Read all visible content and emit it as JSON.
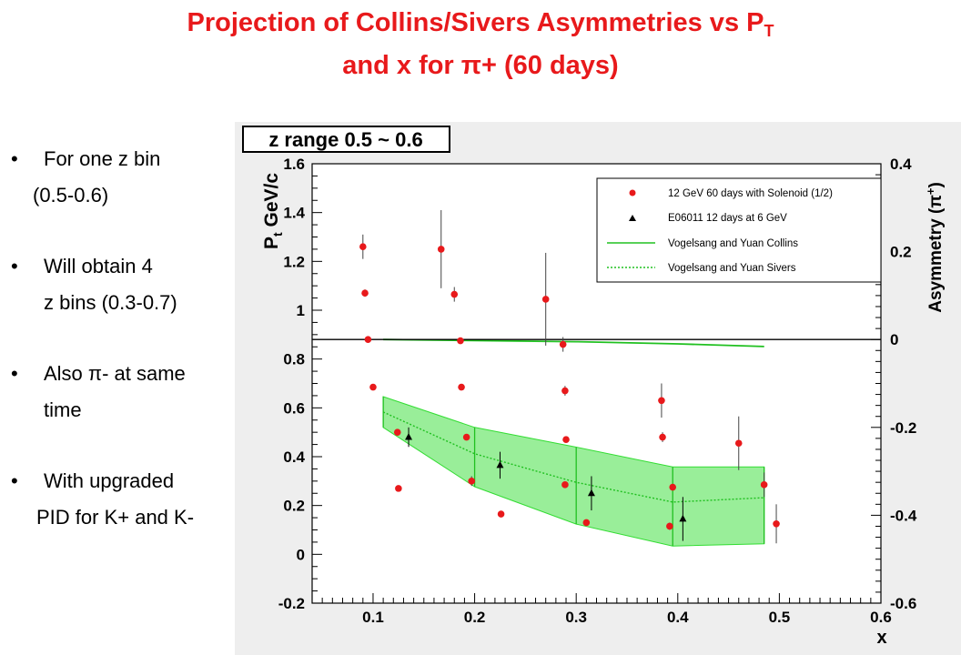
{
  "slide": {
    "title_line1_main": "Projection of Collins/Sivers Asymmetries vs P",
    "title_line1_sub": "T",
    "title_line2_pre": "and x for ",
    "title_line2_sym": "π",
    "title_line2_post": "+ (60 days)"
  },
  "bullets": [
    {
      "bullet": "•",
      "lines": [
        "For one z bin",
        "(0.5-0.6)"
      ]
    },
    {
      "bullet": "•",
      "lines": [
        "Will obtain 4",
        "z bins (0.3-0.7)"
      ]
    },
    {
      "bullet": "•",
      "lines": [
        "Also π- at same",
        "time"
      ]
    },
    {
      "bullet": "•",
      "lines": [
        "With upgraded",
        "PID for K+ and K-"
      ]
    }
  ],
  "chart_data": {
    "type": "scatter",
    "title": "z range 0.5 ~ 0.6",
    "xlabel": "x",
    "ylabel": "P_t GeV/c",
    "ylabel_parts": {
      "main": "P",
      "sub": "t",
      "rest": " GeV/c"
    },
    "y2label": "Asymmetry (π+)",
    "y2label_parts": {
      "main": "Asymmetry (π",
      "sup": "+",
      "rest": ")"
    },
    "xlim": [
      0.04,
      0.6
    ],
    "ylim": [
      -0.2,
      1.6
    ],
    "y2lim": [
      -0.6,
      0.4
    ],
    "x_ticks": [
      "0.1",
      "0.2",
      "0.3",
      "0.4",
      "0.5",
      "0.6"
    ],
    "y_ticks": [
      "-0.2",
      "0",
      "0.2",
      "0.4",
      "0.6",
      "0.8",
      "1",
      "1.2",
      "1.4",
      "1.6"
    ],
    "y2_ticks": [
      "-0.6",
      "-0.4",
      "-0.2",
      "0",
      "0.2",
      "0.4"
    ],
    "grid": false,
    "legend_position": "top-right",
    "colors": {
      "solenoid": "#e8191b",
      "e06011": "#000000",
      "theory": "#20c020",
      "band": "#33dd33",
      "frame": "#000000",
      "panel_bg": "#eeeeee",
      "title_red": "#e8191b"
    },
    "series": [
      {
        "name": "12 GeV 60 days with Solenoid (1/2)",
        "kind": "points",
        "points": [
          {
            "x": 0.09,
            "y": 1.26,
            "ey": 0.05
          },
          {
            "x": 0.092,
            "y": 1.07,
            "ey": 0.015
          },
          {
            "x": 0.095,
            "y": 0.88,
            "ey": 0
          },
          {
            "x": 0.1,
            "y": 0.685,
            "ey": 0
          },
          {
            "x": 0.124,
            "y": 0.5,
            "ey": 0.01
          },
          {
            "x": 0.125,
            "y": 0.27,
            "ey": 0
          },
          {
            "x": 0.167,
            "y": 1.25,
            "ey": 0.16
          },
          {
            "x": 0.18,
            "y": 1.065,
            "ey": 0.03
          },
          {
            "x": 0.186,
            "y": 0.875,
            "ey": 0.01
          },
          {
            "x": 0.187,
            "y": 0.685,
            "ey": 0
          },
          {
            "x": 0.192,
            "y": 0.48,
            "ey": 0
          },
          {
            "x": 0.197,
            "y": 0.3,
            "ey": 0.02
          },
          {
            "x": 0.226,
            "y": 0.165,
            "ey": 0
          },
          {
            "x": 0.27,
            "y": 1.045,
            "ey": 0.19
          },
          {
            "x": 0.287,
            "y": 0.86,
            "ey": 0.03
          },
          {
            "x": 0.289,
            "y": 0.67,
            "ey": 0.02
          },
          {
            "x": 0.289,
            "y": 0.285,
            "ey": 0
          },
          {
            "x": 0.29,
            "y": 0.47,
            "ey": 0
          },
          {
            "x": 0.31,
            "y": 0.13,
            "ey": 0
          },
          {
            "x": 0.384,
            "y": 0.63,
            "ey": 0.07
          },
          {
            "x": 0.385,
            "y": 0.48,
            "ey": 0.02
          },
          {
            "x": 0.392,
            "y": 0.115,
            "ey": 0.015
          },
          {
            "x": 0.395,
            "y": 0.275,
            "ey": 0
          },
          {
            "x": 0.46,
            "y": 0.455,
            "ey": 0.11
          },
          {
            "x": 0.485,
            "y": 0.285,
            "ey": 0.05
          },
          {
            "x": 0.497,
            "y": 0.125,
            "ey": 0.08
          }
        ]
      },
      {
        "name": "E06011 12 days at 6 GeV",
        "kind": "points",
        "points": [
          {
            "x": 0.135,
            "y": 0.48,
            "ey": 0.04
          },
          {
            "x": 0.225,
            "y": 0.365,
            "ey": 0.055
          },
          {
            "x": 0.315,
            "y": 0.25,
            "ey": 0.07
          },
          {
            "x": 0.405,
            "y": 0.145,
            "ey": 0.09
          }
        ]
      },
      {
        "name": "Vogelsang and Yuan Collins",
        "kind": "line",
        "points": [
          {
            "x": 0.11,
            "y": 0.0
          },
          {
            "x": 0.3,
            "y": -0.005
          },
          {
            "x": 0.4,
            "y": -0.01
          },
          {
            "x": 0.485,
            "y": -0.016
          }
        ]
      },
      {
        "name": "Vogelsang and Yuan Sivers",
        "kind": "band",
        "points": [
          {
            "x": 0.11,
            "y": -0.165,
            "ylow": -0.2,
            "yhigh": -0.13
          },
          {
            "x": 0.2,
            "y": -0.26,
            "ylow": -0.335,
            "yhigh": -0.2
          },
          {
            "x": 0.3,
            "y": -0.325,
            "ylow": -0.42,
            "yhigh": -0.245
          },
          {
            "x": 0.395,
            "y": -0.37,
            "ylow": -0.47,
            "yhigh": -0.29
          },
          {
            "x": 0.485,
            "y": -0.36,
            "ylow": -0.465,
            "yhigh": -0.29
          }
        ]
      }
    ]
  }
}
